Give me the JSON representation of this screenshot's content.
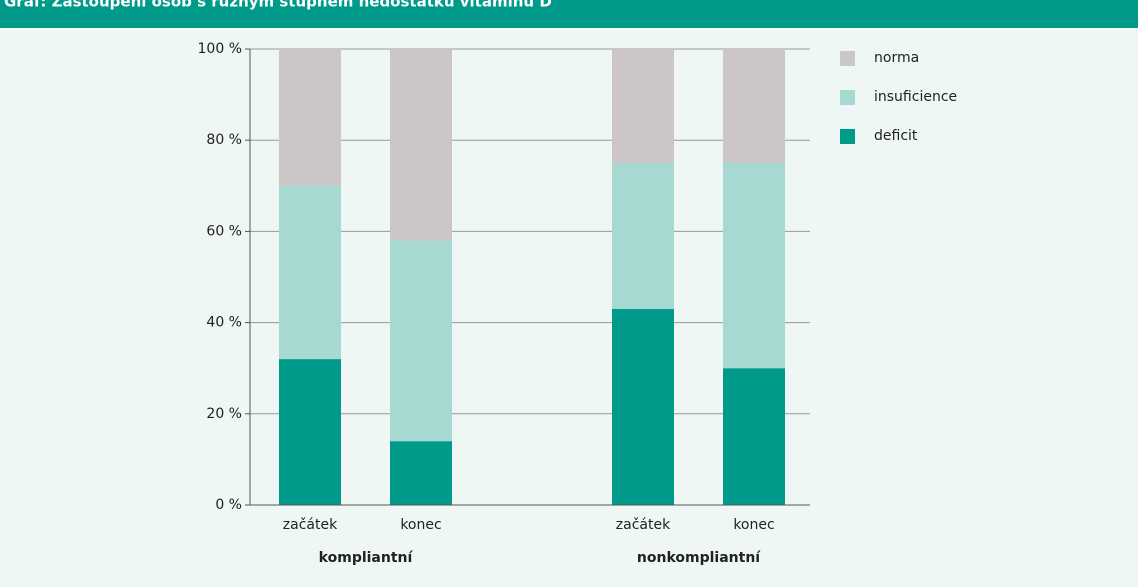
{
  "chart_data": {
    "type": "stacked-bar",
    "title": "Graf: Zastoupení osob s různým stupněm nedostatku vitaminu D",
    "categories": [
      "začátek",
      "konec",
      "začátek",
      "konec"
    ],
    "groups": [
      "kompliantní",
      "nonkompliantní"
    ],
    "series": [
      {
        "name": "deficit",
        "color": "#009a8b",
        "values": [
          32,
          14,
          43,
          30
        ]
      },
      {
        "name": "insuficience",
        "color": "#a6d9d2",
        "values": [
          38,
          44,
          32,
          45
        ]
      },
      {
        "name": "norma",
        "color": "#ccc7c6",
        "values": [
          30,
          42,
          25,
          25
        ]
      }
    ],
    "ylim": [
      0,
      100
    ],
    "yticks": [
      {
        "value": 0,
        "label": "0 %"
      },
      {
        "value": 20,
        "label": "20 %"
      },
      {
        "value": 40,
        "label": "40 %"
      },
      {
        "value": 60,
        "label": "60 %"
      },
      {
        "value": 80,
        "label": "80 %"
      },
      {
        "value": 100,
        "label": "100 %"
      }
    ],
    "grid": true
  }
}
